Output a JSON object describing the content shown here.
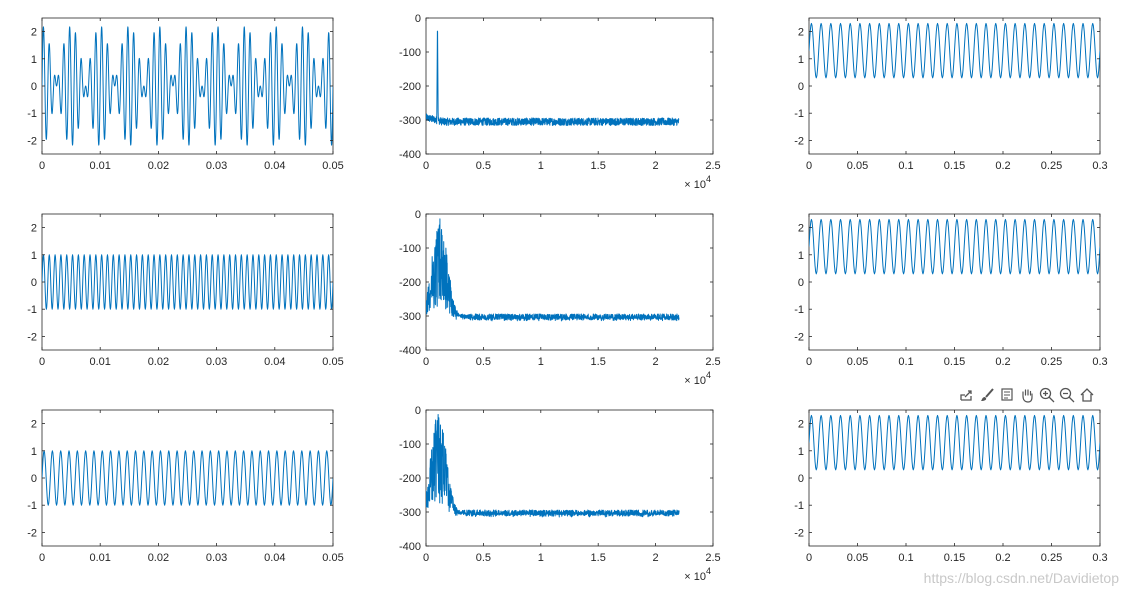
{
  "colors": {
    "series": "#0072BD",
    "axis": "#262626",
    "toolbar_icon": "#555555",
    "watermark": "#c8c8c8"
  },
  "toolbar": {
    "icons": [
      "export-icon",
      "brush-icon",
      "datatip-icon",
      "pan-icon",
      "zoom-in-icon",
      "zoom-out-icon",
      "home-icon"
    ]
  },
  "watermark": "https://blog.csdn.net/Davidietop",
  "chart_data": [
    {
      "type": "line",
      "row": 1,
      "col": 1,
      "title": "",
      "xlabel": "",
      "ylabel": "",
      "xlim": [
        0,
        0.05
      ],
      "ylim": [
        -2.5,
        2.5
      ],
      "xticks": [
        0,
        0.01,
        0.02,
        0.03,
        0.04,
        0.05
      ],
      "xtick_labels": [
        "0",
        "0.01",
        "0.02",
        "0.03",
        "0.04",
        "0.05"
      ],
      "yticks": [
        -2,
        -1,
        0,
        1,
        2
      ],
      "ytick_labels": [
        "-2",
        "-1",
        "0",
        "1",
        "2"
      ],
      "series": [
        {
          "signal": "beat",
          "amplitude": 2.2,
          "carrier_hz": 1000,
          "envelope_hz": 100,
          "x_range": [
            0,
            0.05
          ]
        }
      ]
    },
    {
      "type": "line",
      "row": 1,
      "col": 2,
      "title": "",
      "xlabel": "",
      "ylabel": "",
      "xlim": [
        0,
        25000
      ],
      "ylim": [
        -400,
        0
      ],
      "xticks": [
        0,
        0.5,
        1,
        1.5,
        2,
        2.5
      ],
      "xtick_labels": [
        "0",
        "0.5",
        "1",
        "1.5",
        "2",
        "2.5"
      ],
      "x_exponent_label": "× 10^4",
      "yticks": [
        -400,
        -300,
        -200,
        -100,
        0
      ],
      "ytick_labels": [
        "-400",
        "-300",
        "-200",
        "-100",
        "0"
      ],
      "series": [
        {
          "signal": "spectrum",
          "x_range": [
            0,
            22050
          ],
          "noise_floor_db": -305,
          "peak_hz": 1000,
          "peak_db": 0,
          "peak_width_hz": 60
        }
      ]
    },
    {
      "type": "line",
      "row": 1,
      "col": 3,
      "title": "",
      "xlabel": "",
      "ylabel": "",
      "xlim": [
        0,
        0.3
      ],
      "ylim": [
        -2.5,
        2.5
      ],
      "xticks": [
        0,
        0.05,
        0.1,
        0.15,
        0.2,
        0.25,
        0.3
      ],
      "xtick_labels": [
        "0",
        "0.05",
        "0.1",
        "0.15",
        "0.2",
        "0.25",
        "0.3"
      ],
      "yticks": [
        -2,
        -1,
        0,
        1,
        2
      ],
      "ytick_labels": [
        "-2",
        "-1",
        "0",
        "1",
        "2"
      ],
      "series": [
        {
          "signal": "sine",
          "offset": 1.3,
          "amplitude": 1.0,
          "frequency_hz": 100,
          "x_range": [
            0,
            0.3
          ]
        }
      ]
    },
    {
      "type": "line",
      "row": 2,
      "col": 1,
      "title": "",
      "xlabel": "",
      "ylabel": "",
      "xlim": [
        0,
        0.05
      ],
      "ylim": [
        -2.5,
        2.5
      ],
      "xticks": [
        0,
        0.01,
        0.02,
        0.03,
        0.04,
        0.05
      ],
      "xtick_labels": [
        "0",
        "0.01",
        "0.02",
        "0.03",
        "0.04",
        "0.05"
      ],
      "yticks": [
        -2,
        -1,
        0,
        1,
        2
      ],
      "ytick_labels": [
        "-2",
        "-1",
        "0",
        "1",
        "2"
      ],
      "series": [
        {
          "signal": "sine",
          "offset": 0,
          "amplitude": 1.0,
          "frequency_hz": 1000,
          "x_range": [
            0,
            0.05
          ]
        }
      ]
    },
    {
      "type": "line",
      "row": 2,
      "col": 2,
      "title": "",
      "xlabel": "",
      "ylabel": "",
      "xlim": [
        0,
        25000
      ],
      "ylim": [
        -400,
        0
      ],
      "xticks": [
        0,
        0.5,
        1,
        1.5,
        2,
        2.5
      ],
      "xtick_labels": [
        "0",
        "0.5",
        "1",
        "1.5",
        "2",
        "2.5"
      ],
      "x_exponent_label": "× 10^4",
      "yticks": [
        -400,
        -300,
        -200,
        -100,
        0
      ],
      "ytick_labels": [
        "-400",
        "-300",
        "-200",
        "-100",
        "0"
      ],
      "series": [
        {
          "signal": "spectrum",
          "x_range": [
            0,
            22050
          ],
          "noise_floor_db": -305,
          "peak_hz": 1200,
          "peak_db": -2,
          "peak_width_hz": 1500
        }
      ]
    },
    {
      "type": "line",
      "row": 2,
      "col": 3,
      "title": "",
      "xlabel": "",
      "ylabel": "",
      "xlim": [
        0,
        0.3
      ],
      "ylim": [
        -2.5,
        2.5
      ],
      "xticks": [
        0,
        0.05,
        0.1,
        0.15,
        0.2,
        0.25,
        0.3
      ],
      "xtick_labels": [
        "0",
        "0.05",
        "0.1",
        "0.15",
        "0.2",
        "0.25",
        "0.3"
      ],
      "yticks": [
        -2,
        -1,
        0,
        1,
        2
      ],
      "ytick_labels": [
        "-2",
        "-1",
        "0",
        "1",
        "2"
      ],
      "series": [
        {
          "signal": "sine",
          "offset": 1.3,
          "amplitude": 1.0,
          "frequency_hz": 100,
          "x_range": [
            0,
            0.3
          ]
        }
      ]
    },
    {
      "type": "line",
      "row": 3,
      "col": 1,
      "title": "",
      "xlabel": "",
      "ylabel": "",
      "xlim": [
        0,
        0.05
      ],
      "ylim": [
        -2.5,
        2.5
      ],
      "xticks": [
        0,
        0.01,
        0.02,
        0.03,
        0.04,
        0.05
      ],
      "xtick_labels": [
        "0",
        "0.01",
        "0.02",
        "0.03",
        "0.04",
        "0.05"
      ],
      "yticks": [
        -2,
        -1,
        0,
        1,
        2
      ],
      "ytick_labels": [
        "-2",
        "-1",
        "0",
        "1",
        "2"
      ],
      "series": [
        {
          "signal": "sine",
          "offset": 0,
          "amplitude": 1.0,
          "frequency_hz": 700,
          "x_range": [
            0,
            0.05
          ]
        }
      ]
    },
    {
      "type": "line",
      "row": 3,
      "col": 2,
      "title": "",
      "xlabel": "",
      "ylabel": "",
      "xlim": [
        0,
        25000
      ],
      "ylim": [
        -400,
        0
      ],
      "xticks": [
        0,
        0.5,
        1,
        1.5,
        2,
        2.5
      ],
      "xtick_labels": [
        "0",
        "0.5",
        "1",
        "1.5",
        "2",
        "2.5"
      ],
      "x_exponent_label": "× 10^4",
      "yticks": [
        -400,
        -300,
        -200,
        -100,
        0
      ],
      "ytick_labels": [
        "-400",
        "-300",
        "-200",
        "-100",
        "0"
      ],
      "series": [
        {
          "signal": "spectrum",
          "x_range": [
            0,
            22050
          ],
          "noise_floor_db": -305,
          "peak_hz": 1100,
          "peak_db": -2,
          "peak_width_hz": 1500
        }
      ]
    },
    {
      "type": "line",
      "row": 3,
      "col": 3,
      "title": "",
      "xlabel": "",
      "ylabel": "",
      "xlim": [
        0,
        0.3
      ],
      "ylim": [
        -2.5,
        2.5
      ],
      "xticks": [
        0,
        0.05,
        0.1,
        0.15,
        0.2,
        0.25,
        0.3
      ],
      "xtick_labels": [
        "0",
        "0.05",
        "0.1",
        "0.15",
        "0.2",
        "0.25",
        "0.3"
      ],
      "yticks": [
        -2,
        -1,
        0,
        1,
        2
      ],
      "ytick_labels": [
        "-2",
        "-1",
        "0",
        "1",
        "2"
      ],
      "series": [
        {
          "signal": "sine",
          "offset": 1.3,
          "amplitude": 1.0,
          "frequency_hz": 100,
          "x_range": [
            0,
            0.3
          ]
        }
      ]
    }
  ]
}
